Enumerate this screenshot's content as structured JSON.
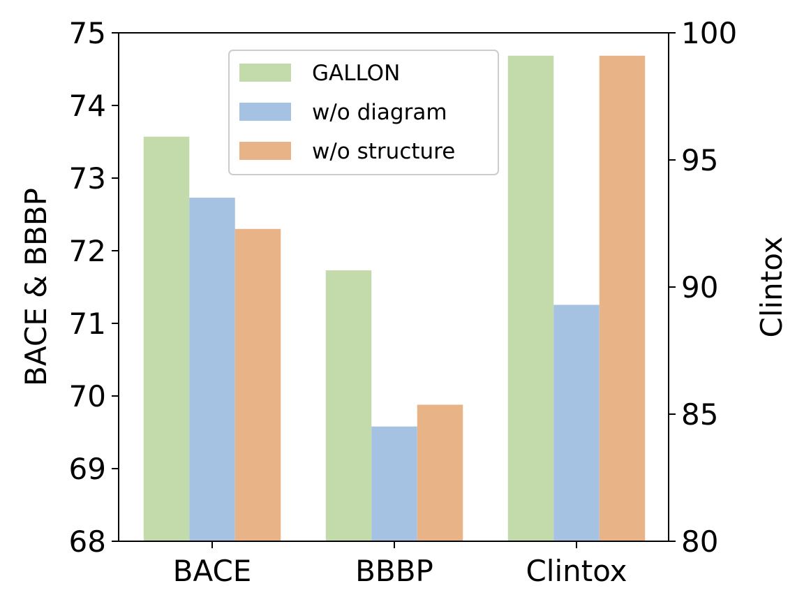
{
  "chart_data": {
    "type": "bar",
    "categories": [
      "BACE",
      "BBBP",
      "Clintox"
    ],
    "title": "",
    "xlabel": "",
    "ylabel": "BACE & BBBP",
    "y2label": "Clintox",
    "ylim": [
      68,
      75
    ],
    "y2lim": [
      80,
      100
    ],
    "yticks": [
      "68",
      "69",
      "70",
      "71",
      "72",
      "73",
      "74",
      "75"
    ],
    "y2ticks": [
      "80",
      "85",
      "90",
      "95",
      "100"
    ],
    "grid": false,
    "legend_position": "top-center",
    "series": [
      {
        "name": "GALLON",
        "color": "#c3dbaa",
        "values": [
          73.57,
          71.73,
          99.1
        ]
      },
      {
        "name": "w/o diagram",
        "color": "#a6c2e3",
        "values": [
          72.73,
          69.58,
          89.3
        ]
      },
      {
        "name": "w/o structure",
        "color": "#e9b388",
        "values": [
          72.3,
          69.88,
          99.1
        ]
      }
    ],
    "axis_mapping": {
      "BACE": "left",
      "BBBP": "left",
      "Clintox": "right"
    }
  }
}
